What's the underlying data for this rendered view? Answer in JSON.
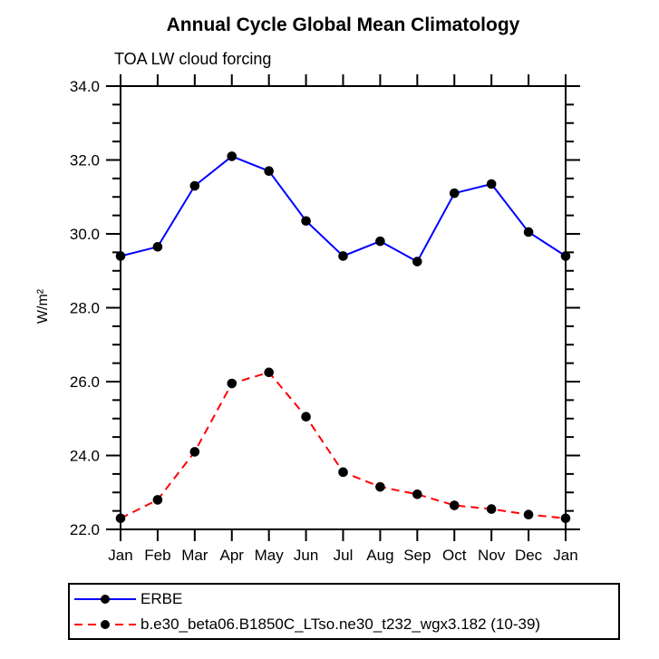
{
  "chart_data": {
    "type": "line",
    "title": "Annual Cycle Global Mean Climatology",
    "subtitle": "TOA LW cloud forcing",
    "ylabel": "W/m²",
    "x_labels": [
      "Jan",
      "Feb",
      "Mar",
      "Apr",
      "May",
      "Jun",
      "Jul",
      "Aug",
      "Sep",
      "Oct",
      "Nov",
      "Dec",
      "Jan"
    ],
    "ylim": [
      22,
      34
    ],
    "ytick_major": 2,
    "ytick_minor": 0.5,
    "ytick_labels": [
      "22.0",
      "24.0",
      "26.0",
      "28.0",
      "30.0",
      "32.0",
      "34.0"
    ],
    "grid": false,
    "legend_position": "bottom-left-boxed",
    "axis_color": "#000000",
    "marker_color": "#000000",
    "series": [
      {
        "name": "ERBE",
        "color": "#0000ff",
        "line_style": "solid",
        "marker": "circle",
        "values": [
          29.4,
          29.65,
          31.3,
          32.1,
          31.7,
          30.35,
          29.4,
          29.8,
          29.25,
          31.1,
          31.35,
          30.05,
          29.4
        ]
      },
      {
        "name": "b.e30_beta06.B1850C_LTso.ne30_t232_wgx3.182 (10-39)",
        "color": "#ff0000",
        "line_style": "dashed",
        "marker": "circle",
        "values": [
          22.3,
          22.8,
          24.1,
          25.95,
          26.25,
          25.05,
          23.55,
          23.15,
          22.95,
          22.65,
          22.55,
          22.4,
          22.3
        ]
      }
    ]
  }
}
